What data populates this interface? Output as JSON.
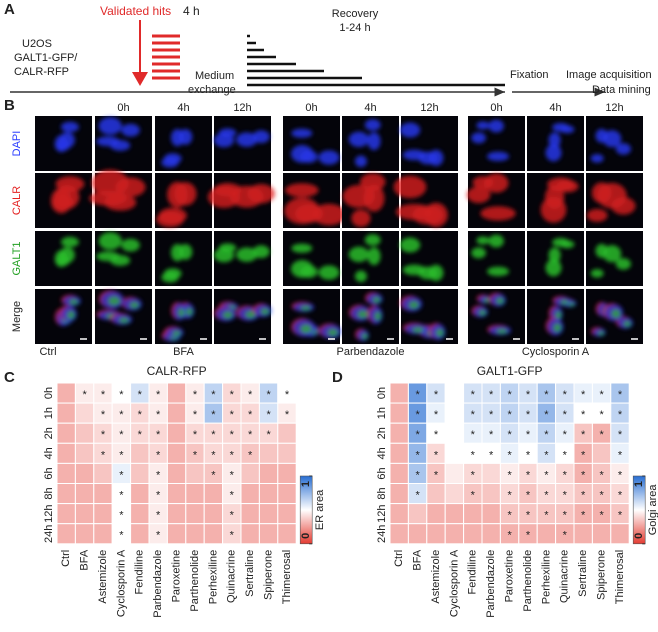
{
  "panel_letters": [
    "A",
    "B",
    "C",
    "D"
  ],
  "diagram": {
    "cell_line": [
      "U2OS",
      "GALT1-GFP/",
      "CALR-RFP"
    ],
    "hits": "Validated hits",
    "treatment": "4 h",
    "exchange": [
      "Medium",
      "exchange"
    ],
    "recovery": [
      "Recovery",
      "1-24 h"
    ],
    "fixation": "Fixation",
    "analysis": [
      "Image acquisition",
      "Data mining"
    ]
  },
  "micrographs": {
    "time_points": [
      "0h",
      "4h",
      "12h"
    ],
    "channels": [
      "DAPI",
      "CALR",
      "GALT1",
      "Merge"
    ],
    "conditions": [
      "Ctrl",
      "BFA",
      "Parbendazole",
      "Cyclosporin A"
    ]
  },
  "chart_data": [
    {
      "type": "heatmap",
      "title": "CALR-RFP",
      "categories": [
        "Ctrl",
        "BFA",
        "Astemizole",
        "Cyclosporin A",
        "Fendiline",
        "Parbendazole",
        "Paroxetine",
        "Parthenolide",
        "Perhexiline",
        "Quinacrine",
        "Sertraline",
        "Spiperone",
        "Thimerosal"
      ],
      "rows": [
        "0h",
        "1h",
        "2h",
        "4h",
        "6h",
        "8h",
        "12h",
        "24h"
      ],
      "values": [
        [
          0.3,
          0.45,
          0.45,
          0.5,
          0.6,
          0.45,
          0.3,
          0.45,
          0.65,
          0.4,
          0.45,
          0.65,
          0.5
        ],
        [
          0.3,
          0.4,
          0.45,
          0.45,
          0.4,
          0.45,
          0.3,
          0.45,
          0.7,
          0.4,
          0.4,
          0.6,
          0.45
        ],
        [
          0.3,
          0.35,
          0.4,
          0.45,
          0.4,
          0.4,
          0.3,
          0.4,
          0.4,
          0.4,
          0.4,
          0.4,
          0.35
        ],
        [
          0.3,
          0.35,
          0.4,
          0.45,
          0.35,
          0.4,
          0.3,
          0.35,
          0.4,
          0.4,
          0.35,
          0.35,
          0.35
        ],
        [
          0.3,
          0.3,
          0.35,
          0.55,
          0.35,
          0.45,
          0.3,
          0.35,
          0.35,
          0.45,
          0.35,
          0.3,
          0.3
        ],
        [
          0.3,
          0.3,
          0.3,
          0.5,
          0.3,
          0.45,
          0.3,
          0.3,
          0.3,
          0.45,
          0.3,
          0.3,
          0.3
        ],
        [
          0.3,
          0.3,
          0.3,
          0.5,
          0.3,
          0.45,
          0.3,
          0.3,
          0.3,
          0.4,
          0.3,
          0.3,
          0.3
        ],
        [
          0.3,
          0.3,
          0.3,
          0.5,
          0.3,
          0.45,
          0.3,
          0.3,
          0.3,
          0.4,
          0.3,
          0.3,
          0.3
        ]
      ],
      "annotations": [
        [
          null,
          "*",
          "*",
          "*",
          "*",
          "*",
          null,
          "*",
          "*",
          "*",
          "*",
          "*",
          "*"
        ],
        [
          null,
          null,
          "*",
          "*",
          "*",
          "*",
          null,
          "*",
          "*",
          "*",
          "*",
          "*",
          "*"
        ],
        [
          null,
          null,
          "*",
          "*",
          "*",
          "*",
          null,
          "*",
          "*",
          "*",
          "*",
          "*",
          null
        ],
        [
          null,
          null,
          "*",
          "*",
          null,
          "*",
          null,
          "*",
          "*",
          "*",
          "*",
          null,
          null
        ],
        [
          null,
          null,
          null,
          "*",
          null,
          "*",
          null,
          null,
          "*",
          "*",
          null,
          null,
          null
        ],
        [
          null,
          null,
          null,
          "*",
          null,
          "*",
          null,
          null,
          null,
          "*",
          null,
          null,
          null
        ],
        [
          null,
          null,
          null,
          "*",
          null,
          "*",
          null,
          null,
          null,
          "*",
          null,
          null,
          null
        ],
        [
          null,
          null,
          null,
          "*",
          null,
          "*",
          null,
          null,
          null,
          "*",
          null,
          null,
          null
        ]
      ],
      "colors": [
        "#e43c32",
        "#ffffff",
        "#286ed2"
      ],
      "colorbar": {
        "label": "ER area",
        "lim": [
          0,
          1
        ],
        "ticks": [
          0,
          1
        ]
      }
    },
    {
      "type": "heatmap",
      "title": "GALT1-GFP",
      "categories": [
        "Ctrl",
        "BFA",
        "Astemizole",
        "Cyclosporin A",
        "Fendiline",
        "Parbendazole",
        "Paroxetine",
        "Parthenolide",
        "Perhexiline",
        "Quinacrine",
        "Sertraline",
        "Spiperone",
        "Thimerosal"
      ],
      "rows": [
        "0h",
        "1h",
        "2h",
        "4h",
        "6h",
        "8h",
        "12h",
        "24h"
      ],
      "values": [
        [
          0.3,
          0.85,
          0.6,
          0.5,
          0.6,
          0.6,
          0.65,
          0.6,
          0.7,
          0.6,
          0.55,
          0.55,
          0.7
        ],
        [
          0.3,
          0.85,
          0.55,
          0.5,
          0.6,
          0.6,
          0.65,
          0.6,
          0.75,
          0.6,
          0.5,
          0.5,
          0.65
        ],
        [
          0.3,
          0.8,
          0.5,
          0.5,
          0.55,
          0.55,
          0.6,
          0.55,
          0.65,
          0.55,
          0.35,
          0.3,
          0.6
        ],
        [
          0.3,
          0.75,
          0.4,
          0.5,
          0.5,
          0.5,
          0.55,
          0.5,
          0.6,
          0.5,
          0.3,
          0.35,
          0.55
        ],
        [
          0.3,
          0.7,
          0.35,
          0.45,
          0.4,
          0.4,
          0.45,
          0.4,
          0.45,
          0.4,
          0.3,
          0.35,
          0.45
        ],
        [
          0.3,
          0.6,
          0.35,
          0.4,
          0.35,
          0.35,
          0.4,
          0.35,
          0.4,
          0.4,
          0.35,
          0.35,
          0.4
        ],
        [
          0.3,
          0.35,
          0.3,
          0.3,
          0.3,
          0.3,
          0.35,
          0.35,
          0.35,
          0.35,
          0.3,
          0.3,
          0.35
        ],
        [
          0.3,
          0.3,
          0.3,
          0.3,
          0.3,
          0.3,
          0.3,
          0.3,
          0.3,
          0.3,
          0.3,
          0.3,
          0.3
        ]
      ],
      "annotations": [
        [
          null,
          "*",
          "*",
          null,
          "*",
          "*",
          "*",
          "*",
          "*",
          "*",
          "*",
          "*",
          "*"
        ],
        [
          null,
          "*",
          "*",
          null,
          "*",
          "*",
          "*",
          "*",
          "*",
          "*",
          "*",
          "*",
          "*"
        ],
        [
          null,
          "*",
          "*",
          null,
          "*",
          "*",
          "*",
          "*",
          "*",
          "*",
          "*",
          "*",
          "*"
        ],
        [
          null,
          "*",
          "*",
          null,
          "*",
          "*",
          "*",
          "*",
          "*",
          "*",
          "*",
          null,
          "*"
        ],
        [
          null,
          "*",
          "*",
          null,
          "*",
          null,
          "*",
          "*",
          "*",
          "*",
          "*",
          "*",
          "*"
        ],
        [
          null,
          "*",
          null,
          null,
          "*",
          null,
          "*",
          "*",
          "*",
          "*",
          "*",
          "*",
          "*"
        ],
        [
          null,
          null,
          null,
          null,
          null,
          null,
          "*",
          "*",
          "*",
          "*",
          "*",
          "*",
          "*"
        ],
        [
          null,
          null,
          null,
          null,
          null,
          null,
          "*",
          "*",
          null,
          "*",
          null,
          null,
          null
        ]
      ],
      "colors": [
        "#e43c32",
        "#ffffff",
        "#286ed2"
      ],
      "colorbar": {
        "label": "Golgi area",
        "lim": [
          0,
          1
        ],
        "ticks": [
          0,
          1
        ]
      }
    }
  ]
}
